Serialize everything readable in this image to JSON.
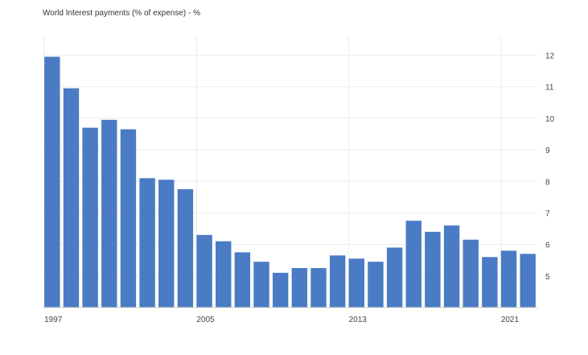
{
  "chart_data": {
    "type": "bar",
    "title": "World Interest payments (% of expense) - %",
    "xlabel": "",
    "ylabel": "",
    "categories": [
      "1997",
      "1998",
      "1999",
      "2000",
      "2001",
      "2002",
      "2003",
      "2004",
      "2005",
      "2006",
      "2007",
      "2008",
      "2009",
      "2010",
      "2011",
      "2012",
      "2013",
      "2014",
      "2015",
      "2016",
      "2017",
      "2018",
      "2019",
      "2020",
      "2021",
      "2022"
    ],
    "values": [
      11.95,
      10.95,
      9.7,
      9.95,
      9.65,
      8.1,
      8.05,
      7.75,
      6.3,
      6.1,
      5.75,
      5.45,
      5.1,
      5.25,
      5.25,
      5.65,
      5.55,
      5.45,
      5.9,
      6.75,
      6.4,
      6.6,
      6.15,
      5.6,
      5.8,
      5.7
    ],
    "x_tick_labels": [
      "1997",
      "2005",
      "2013",
      "2021"
    ],
    "y_ticks": [
      5,
      6,
      7,
      8,
      9,
      10,
      11,
      12
    ],
    "ylim": [
      4,
      12.6
    ],
    "y_axis_side": "right",
    "grid": true,
    "bar_color": "#4a7bc4",
    "grid_color": "#ececec"
  }
}
